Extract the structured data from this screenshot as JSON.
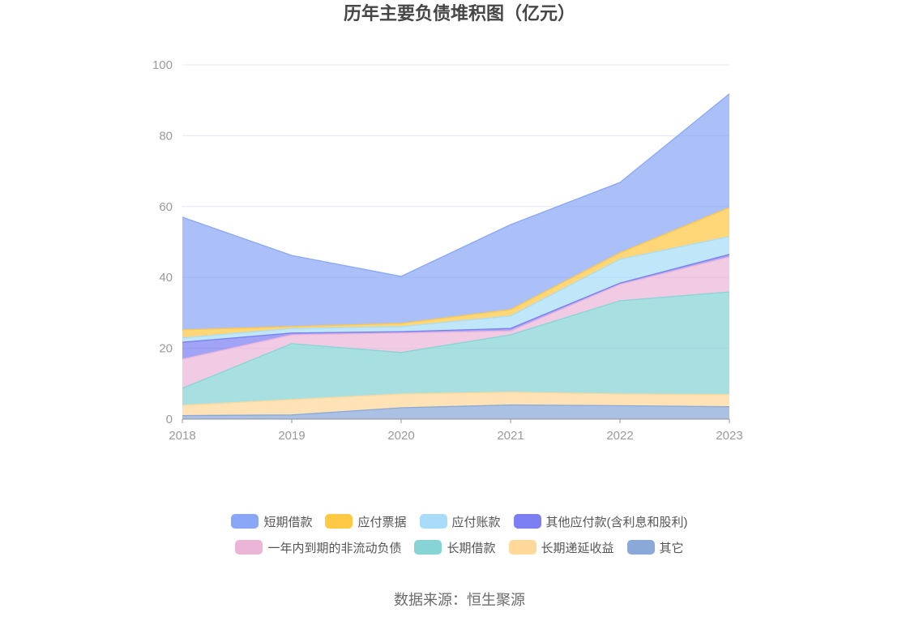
{
  "source": "数据来源：恒生聚源",
  "chart_data": {
    "type": "area",
    "stacked": true,
    "title": "历年主要负债堆积图（亿元）",
    "xlabel": "",
    "ylabel": "",
    "x": [
      "2018",
      "2019",
      "2020",
      "2021",
      "2022",
      "2023"
    ],
    "ylim": [
      0,
      100
    ],
    "yticks": [
      0,
      20,
      40,
      60,
      80,
      100
    ],
    "grid": true,
    "legend_position": "bottom",
    "stack_order": "last series at bottom",
    "series": [
      {
        "name": "短期借款",
        "color": "#8aa7f7",
        "values": [
          31.8,
          20.1,
          13.3,
          24.0,
          19.9,
          32.1
        ]
      },
      {
        "name": "应付票据",
        "color": "#ffc845",
        "values": [
          2.3,
          0.5,
          0.9,
          1.8,
          1.8,
          8.2
        ]
      },
      {
        "name": "应付账款",
        "color": "#a8dcf8",
        "values": [
          1.2,
          1.3,
          1.4,
          3.5,
          6.7,
          5.0
        ]
      },
      {
        "name": "其他应付款(含利息和股利)",
        "color": "#7b7ff2",
        "values": [
          4.8,
          0.5,
          0.4,
          0.7,
          0.4,
          0.7
        ]
      },
      {
        "name": "一年内到期的非流动负债",
        "color": "#ebb5d8",
        "values": [
          8.2,
          2.5,
          5.5,
          1.1,
          4.6,
          9.9
        ]
      },
      {
        "name": "长期借款",
        "color": "#86d4d6",
        "values": [
          4.8,
          15.8,
          11.7,
          16.2,
          26.3,
          29.0
        ]
      },
      {
        "name": "长期递延收益",
        "color": "#ffd89a",
        "values": [
          2.9,
          4.3,
          3.9,
          3.6,
          3.3,
          3.4
        ]
      },
      {
        "name": "其它",
        "color": "#8aa9d8",
        "values": [
          1.0,
          1.2,
          3.2,
          4.0,
          3.8,
          3.5
        ]
      }
    ]
  }
}
